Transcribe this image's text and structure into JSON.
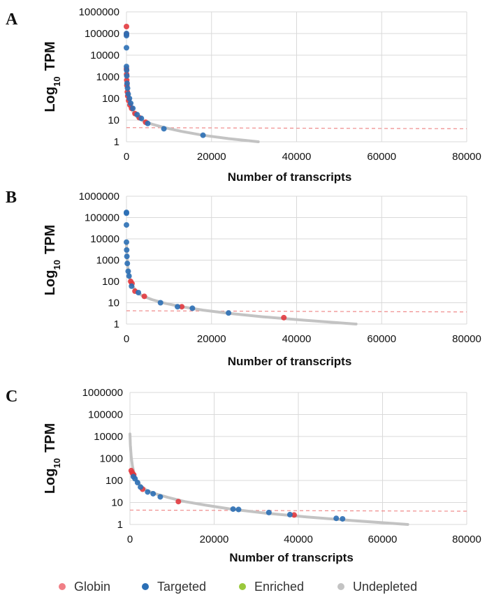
{
  "colors": {
    "globin": "#f07f86",
    "globin_point": "#e23a3f",
    "targeted": "#2b6fb5",
    "enriched": "#9ac83c",
    "undepleted": "#c3c3c3",
    "threshold": "#ef8a8a",
    "grid": "#d9d9d9"
  },
  "legend": [
    {
      "label": "Globin",
      "color": "#f07f86"
    },
    {
      "label": "Targeted",
      "color": "#2b6fb5"
    },
    {
      "label": "Enriched",
      "color": "#9ac83c"
    },
    {
      "label": "Undepleted",
      "color": "#c3c3c3"
    }
  ],
  "chart_data": [
    {
      "panel": "A",
      "type": "scatter",
      "xlabel": "Number of transcripts",
      "ylabel_main": "Log",
      "ylabel_sub": "10",
      "ylabel_tail": "TPM",
      "log_y": true,
      "xlim": [
        0,
        80000
      ],
      "ylim": [
        1,
        1000000
      ],
      "xticks": [
        0,
        20000,
        40000,
        60000,
        80000
      ],
      "xtick_labels": [
        "0",
        "20000",
        "40000",
        "60000",
        "80000"
      ],
      "yticks": [
        1,
        10,
        100,
        1000,
        10000,
        100000,
        1000000
      ],
      "ytick_labels": [
        "1",
        "10",
        "100",
        "1000",
        "10000",
        "100000",
        "1000000"
      ],
      "grid": true,
      "undepleted_curve": {
        "x": [
          0,
          100,
          300,
          600,
          1000,
          1500,
          2500,
          4000,
          6000,
          9000,
          13000,
          18000,
          24000,
          31000
        ],
        "y": [
          3000,
          800,
          250,
          90,
          40,
          25,
          14,
          9,
          6.5,
          4.5,
          3,
          2,
          1.4,
          1
        ]
      },
      "threshold_y": [
        4.5,
        4
      ],
      "series": [
        {
          "name": "Globin",
          "x": [
            0,
            0,
            0,
            0,
            30,
            60,
            100,
            200,
            300,
            500,
            800,
            1200,
            2000,
            3000,
            4500
          ],
          "y": [
            210000,
            95000,
            90000,
            2300,
            1300,
            700,
            400,
            200,
            130,
            80,
            50,
            35,
            20,
            13,
            8
          ]
        },
        {
          "name": "Targeted",
          "x": [
            0,
            0,
            0,
            0,
            40,
            80,
            150,
            250,
            400,
            700,
            1000,
            1500,
            2500,
            3500,
            5000,
            8800,
            18000
          ],
          "y": [
            100000,
            80000,
            22000,
            3000,
            2000,
            1100,
            500,
            300,
            160,
            100,
            60,
            35,
            18,
            12,
            7,
            4,
            2
          ]
        }
      ]
    },
    {
      "panel": "B",
      "type": "scatter",
      "xlabel": "Number of transcripts",
      "ylabel_main": "Log",
      "ylabel_sub": "10",
      "ylabel_tail": "TPM",
      "log_y": true,
      "xlim": [
        0,
        80000
      ],
      "ylim": [
        1,
        1000000
      ],
      "xticks": [
        0,
        20000,
        40000,
        60000,
        80000
      ],
      "xtick_labels": [
        "0",
        "20000",
        "40000",
        "60000",
        "80000"
      ],
      "yticks": [
        1,
        10,
        100,
        1000,
        10000,
        100000,
        1000000
      ],
      "ytick_labels": [
        "1",
        "10",
        "100",
        "1000",
        "10000",
        "100000",
        "1000000"
      ],
      "grid": true,
      "undepleted_curve": {
        "x": [
          0,
          100,
          300,
          600,
          1000,
          1500,
          2500,
          4000,
          6000,
          9000,
          13000,
          18000,
          24000,
          32000,
          42000,
          54000
        ],
        "y": [
          6000,
          1500,
          500,
          200,
          100,
          60,
          30,
          20,
          14,
          9.5,
          6.5,
          4.5,
          3.2,
          2.2,
          1.5,
          1
        ]
      },
      "threshold_y": [
        4.2,
        3.7
      ],
      "series": [
        {
          "name": "Globin",
          "x": [
            1000,
            1300,
            2000,
            4200,
            13000,
            37000
          ],
          "y": [
            100,
            80,
            35,
            20,
            6.5,
            2
          ]
        },
        {
          "name": "Targeted",
          "x": [
            0,
            0,
            0,
            0,
            50,
            100,
            200,
            400,
            600,
            1200,
            2800,
            8000,
            12000,
            15500,
            24000
          ],
          "y": [
            175000,
            160000,
            45000,
            7000,
            3000,
            1500,
            700,
            300,
            180,
            60,
            30,
            10,
            6.5,
            5.5,
            3.3
          ]
        }
      ]
    },
    {
      "panel": "C",
      "type": "scatter",
      "xlabel": "Number of transcripts",
      "ylabel_main": "Log",
      "ylabel_sub": "10",
      "ylabel_tail": "TPM",
      "log_y": true,
      "xlim": [
        0,
        80000
      ],
      "ylim": [
        1,
        1000000
      ],
      "xticks": [
        0,
        20000,
        40000,
        60000,
        80000
      ],
      "xtick_labels": [
        "0",
        "20000",
        "40000",
        "60000",
        "80000"
      ],
      "yticks": [
        1,
        10,
        100,
        1000,
        10000,
        100000,
        1000000
      ],
      "ytick_labels": [
        "1",
        "10",
        "100",
        "1000",
        "10000",
        "100000",
        "1000000"
      ],
      "grid": true,
      "undepleted_curve": {
        "x": [
          0,
          100,
          300,
          600,
          1000,
          1500,
          2500,
          4000,
          6000,
          9000,
          13000,
          18000,
          24000,
          32000,
          42000,
          53000,
          66000
        ],
        "y": [
          13000,
          4000,
          1200,
          450,
          200,
          110,
          60,
          35,
          25,
          17,
          11,
          7.5,
          5,
          3.3,
          2.2,
          1.5,
          1
        ]
      },
      "threshold_y": [
        4.5,
        4
      ],
      "series": [
        {
          "name": "Globin",
          "x": [
            300,
            500,
            700,
            900,
            3000,
            11500,
            39000
          ],
          "y": [
            280,
            230,
            200,
            180,
            40,
            11,
            2.7
          ]
        },
        {
          "name": "Targeted",
          "x": [
            800,
            1200,
            1800,
            2500,
            4200,
            5500,
            7200,
            24500,
            25800,
            33000,
            38000,
            49000,
            50500
          ],
          "y": [
            150,
            120,
            80,
            50,
            30,
            25,
            18,
            5,
            4.8,
            3.5,
            2.8,
            1.9,
            1.8
          ]
        }
      ]
    }
  ]
}
